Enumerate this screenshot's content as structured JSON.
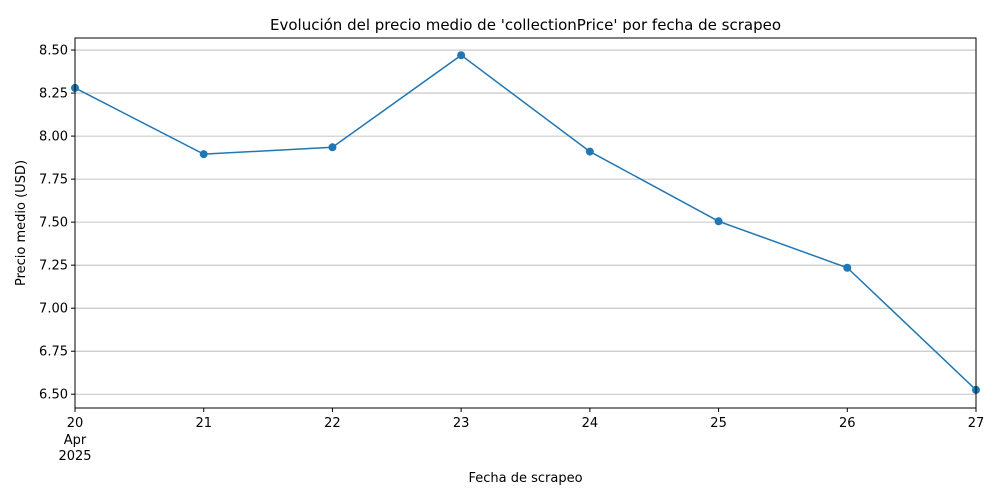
{
  "chart_data": {
    "type": "line",
    "title": "Evolución del precio medio de 'collectionPrice' por fecha de scrapeo",
    "xlabel": "Fecha de scrapeo",
    "ylabel": "Precio medio (USD)",
    "x": [
      "2025-04-20",
      "2025-04-21",
      "2025-04-22",
      "2025-04-23",
      "2025-04-24",
      "2025-04-25",
      "2025-04-26",
      "2025-04-27"
    ],
    "x_tick_labels": [
      "20",
      "21",
      "22",
      "23",
      "24",
      "25",
      "26",
      "27"
    ],
    "x_tick_sublabels": [
      "Apr",
      "2025"
    ],
    "series": [
      {
        "values": [
          8.28,
          7.895,
          7.935,
          8.47,
          7.91,
          7.505,
          7.235,
          6.525
        ],
        "color": "#1f77b4",
        "marker": "circle"
      }
    ],
    "ylim": [
      6.42,
      8.57
    ],
    "y_ticks": [
      6.5,
      6.75,
      7.0,
      7.25,
      7.5,
      7.75,
      8.0,
      8.25,
      8.5
    ],
    "y_tick_labels": [
      "6.50",
      "6.75",
      "7.00",
      "7.25",
      "7.50",
      "7.75",
      "8.00",
      "8.25",
      "8.50"
    ],
    "grid": "y-major",
    "legend": "none"
  }
}
